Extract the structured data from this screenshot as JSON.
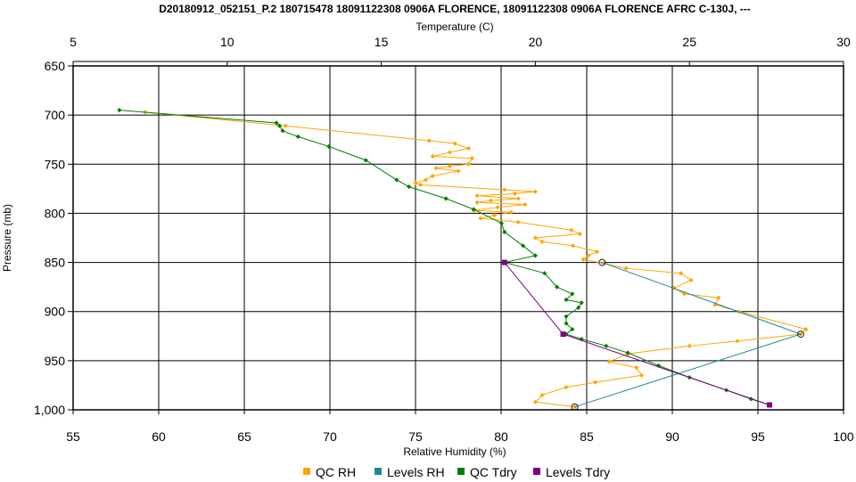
{
  "chart_data": {
    "type": "line",
    "title": "D20180912_052151_P.2 180715478 18091122308 0906A FLORENCE, 18091122308 0906A FLORENCE AFRC C-130J, ---",
    "xlabel": "Relative Humidity (%)",
    "x2label": "Temperature (C)",
    "ylabel": "Pressure (mb)",
    "ylim": [
      650,
      1000
    ],
    "y_inverted": true,
    "xlim": [
      55,
      100
    ],
    "x2lim": [
      5,
      30
    ],
    "yticks": [
      "650",
      "700",
      "750",
      "800",
      "850",
      "900",
      "950",
      "1,000"
    ],
    "yticks_values": [
      650,
      700,
      750,
      800,
      850,
      900,
      950,
      1000
    ],
    "xticks": [
      "55",
      "60",
      "65",
      "70",
      "75",
      "80",
      "85",
      "90",
      "95",
      "100"
    ],
    "xticks_values": [
      55,
      60,
      65,
      70,
      75,
      80,
      85,
      90,
      95,
      100
    ],
    "x2ticks": [
      "5",
      "10",
      "15",
      "20",
      "25",
      "30"
    ],
    "x2ticks_values": [
      5,
      10,
      15,
      20,
      25,
      30
    ],
    "grid": true,
    "legend_position": "bottom",
    "series": [
      {
        "name": "QC RH",
        "color": "#FFA500",
        "axis": "bottom",
        "marker": "diamond",
        "points": [
          [
            59.2,
            697
          ],
          [
            67.4,
            711
          ],
          [
            75.8,
            726
          ],
          [
            77.3,
            729
          ],
          [
            78.1,
            734
          ],
          [
            77.0,
            738
          ],
          [
            76.0,
            742
          ],
          [
            78.3,
            744
          ],
          [
            78.1,
            750
          ],
          [
            77.0,
            752
          ],
          [
            76.2,
            754
          ],
          [
            77.5,
            757
          ],
          [
            76.0,
            762
          ],
          [
            75.6,
            766
          ],
          [
            75.0,
            769
          ],
          [
            75.3,
            771
          ],
          [
            80.2,
            776
          ],
          [
            82.0,
            778
          ],
          [
            80.8,
            780
          ],
          [
            78.6,
            782
          ],
          [
            81.0,
            785
          ],
          [
            79.4,
            787
          ],
          [
            78.6,
            789
          ],
          [
            81.4,
            791
          ],
          [
            79.8,
            794
          ],
          [
            78.4,
            797
          ],
          [
            80.6,
            799
          ],
          [
            79.6,
            802
          ],
          [
            78.8,
            805
          ],
          [
            81.0,
            809
          ],
          [
            84.1,
            817
          ],
          [
            84.6,
            821
          ],
          [
            82.0,
            825
          ],
          [
            82.4,
            829
          ],
          [
            84.2,
            833
          ],
          [
            85.6,
            839
          ],
          [
            85.1,
            843
          ],
          [
            84.8,
            847
          ],
          [
            86.0,
            851
          ],
          [
            87.3,
            856
          ],
          [
            90.5,
            861
          ],
          [
            91.1,
            868
          ],
          [
            90.1,
            876
          ],
          [
            90.7,
            882
          ],
          [
            92.7,
            886
          ],
          [
            92.5,
            893
          ],
          [
            93.9,
            900
          ],
          [
            97.8,
            918
          ],
          [
            97.5,
            923
          ],
          [
            93.8,
            930
          ],
          [
            91.0,
            935
          ],
          [
            87.4,
            943
          ],
          [
            86.3,
            951
          ],
          [
            87.9,
            957
          ],
          [
            88.2,
            965
          ],
          [
            85.5,
            972
          ],
          [
            83.8,
            977
          ],
          [
            82.4,
            985
          ],
          [
            82.0,
            992
          ],
          [
            84.3,
            997
          ]
        ]
      },
      {
        "name": "Levels RH",
        "color": "#1A8A9A",
        "axis": "bottom",
        "marker": "circle",
        "points": [
          [
            85.9,
            850
          ],
          [
            97.5,
            923
          ],
          [
            84.3,
            997
          ]
        ]
      },
      {
        "name": "QC Tdry",
        "color": "#007F00",
        "axis": "top",
        "marker": "diamond",
        "points": [
          [
            6.5,
            695
          ],
          [
            11.6,
            708
          ],
          [
            11.7,
            711
          ],
          [
            11.8,
            716
          ],
          [
            12.3,
            722
          ],
          [
            13.3,
            732
          ],
          [
            14.5,
            746
          ],
          [
            15.5,
            766
          ],
          [
            15.9,
            773
          ],
          [
            17.1,
            785
          ],
          [
            18.0,
            796
          ],
          [
            18.9,
            810
          ],
          [
            19.0,
            819
          ],
          [
            19.6,
            833
          ],
          [
            20.0,
            843
          ],
          [
            19.0,
            850
          ],
          [
            20.3,
            861
          ],
          [
            20.7,
            875
          ],
          [
            21.2,
            882
          ],
          [
            21.0,
            888
          ],
          [
            21.5,
            891
          ],
          [
            21.4,
            896
          ],
          [
            21.0,
            905
          ],
          [
            21.0,
            912
          ],
          [
            21.2,
            918
          ],
          [
            21.0,
            923
          ],
          [
            21.5,
            928
          ],
          [
            22.3,
            935
          ],
          [
            23.0,
            942
          ],
          [
            24.0,
            955
          ],
          [
            25.0,
            967
          ],
          [
            26.2,
            980
          ],
          [
            27.0,
            989
          ],
          [
            27.6,
            995
          ]
        ]
      },
      {
        "name": "Levels Tdry",
        "color": "#800080",
        "axis": "top",
        "marker": "square",
        "points": [
          [
            19.0,
            850
          ],
          [
            20.9,
            923
          ],
          [
            27.6,
            995
          ]
        ]
      }
    ]
  }
}
